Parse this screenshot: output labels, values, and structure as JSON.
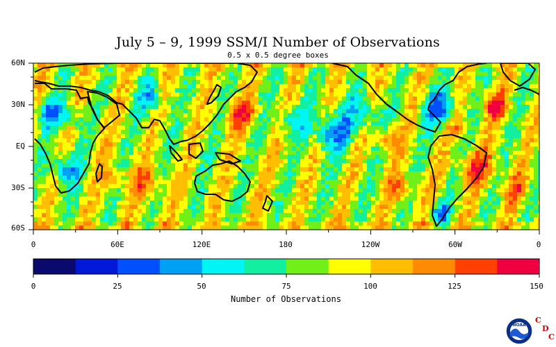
{
  "title": "July 5 – 9, 1999 SSM/I Number of Observations",
  "subtitle": "0.5 x 0.5 degree boxes",
  "lat_labels": [
    "60N",
    "30N",
    "EQ",
    "30S",
    "60S"
  ],
  "lon_labels": [
    "0",
    "60E",
    "120E",
    "180",
    "120W",
    "60W",
    "0"
  ],
  "colorbar": {
    "title": "Number of Observations",
    "labels": [
      "0",
      "25",
      "50",
      "75",
      "100",
      "125",
      "150"
    ],
    "min": 0,
    "max": 150,
    "colors": [
      "#0a0a6e",
      "#0018d8",
      "#0050ff",
      "#00a0f5",
      "#00f5f5",
      "#10f0a0",
      "#70f018",
      "#ffff00",
      "#ffbe00",
      "#ff8c00",
      "#ff4000",
      "#f00040"
    ]
  },
  "logo": {
    "noaa_text": "NOAA",
    "cdc_letters": [
      "C",
      "D",
      "C"
    ]
  }
}
